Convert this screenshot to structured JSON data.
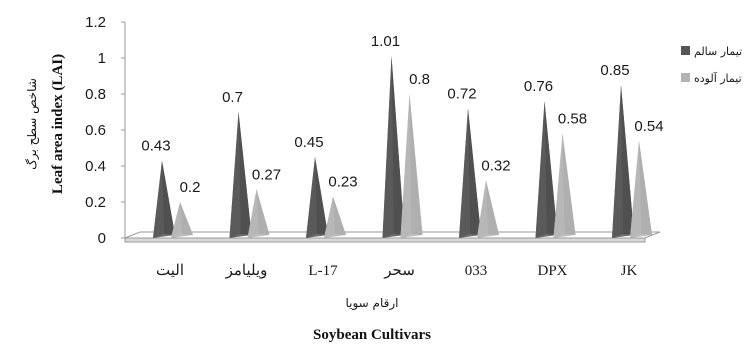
{
  "chart_data": {
    "type": "bar",
    "style": "3d-cone",
    "categories": [
      "الیت",
      "ویلیامز",
      "L-17",
      "سحر",
      "033",
      "DPX",
      "JK"
    ],
    "series": [
      {
        "name": "تیمار سالم",
        "color": "#555555",
        "values": [
          0.43,
          0.7,
          0.45,
          1.01,
          0.72,
          0.76,
          0.85
        ]
      },
      {
        "name": "تیمار آلوده",
        "color": "#b3b3b3",
        "values": [
          0.2,
          0.27,
          0.23,
          0.8,
          0.32,
          0.58,
          0.54
        ]
      }
    ],
    "data_labels": [
      [
        "0.43",
        "0.7",
        "0.45",
        "1.01",
        "0.72",
        "0.76",
        "0.85"
      ],
      [
        "0.2",
        "0.27",
        "0.23",
        "0.8",
        "0.32",
        "0.58",
        "0.54"
      ]
    ],
    "ylim": [
      0,
      1.2
    ],
    "yticks": [
      "0",
      "0.2",
      "0.4",
      "0.6",
      "0.8",
      "1",
      "1.2"
    ],
    "xlabel_fa": "ارقام سویا",
    "xlabel": "Soybean Cultivars",
    "ylabel_fa": "شاخص سطح برگ",
    "ylabel": "Leaf area index (LAI)",
    "legend_position": "right",
    "grid": false
  }
}
